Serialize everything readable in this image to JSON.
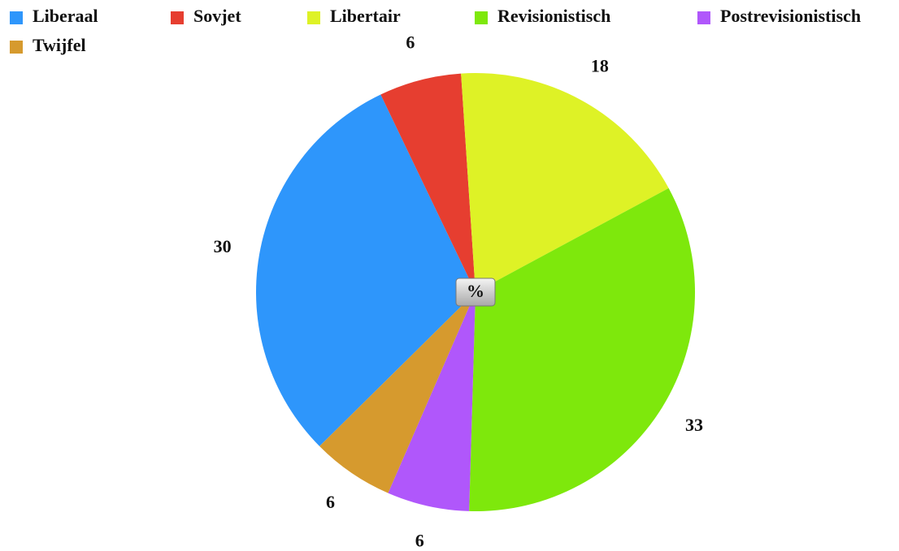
{
  "chart_data": {
    "type": "pie",
    "categories": [
      "Liberaal",
      "Sovjet",
      "Libertair",
      "Revisionistisch",
      "Postrevisionistisch",
      "Twijfel"
    ],
    "values": [
      30,
      6,
      18,
      33,
      6,
      6
    ],
    "colors": [
      "#2e96fb",
      "#e63e30",
      "#def226",
      "#7ee80c",
      "#b057fb",
      "#d69a2e"
    ],
    "center_label": "%"
  }
}
